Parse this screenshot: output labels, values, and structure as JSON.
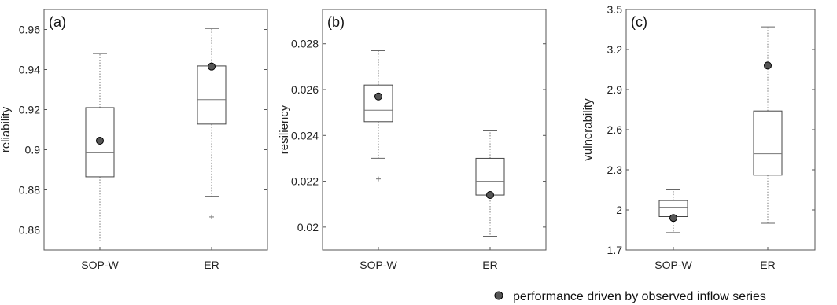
{
  "figure": {
    "legend": {
      "marker_color": "#555555",
      "label": "performance driven by observed inflow series",
      "placement": "bottom-right"
    }
  },
  "chart_data": [
    {
      "type": "box",
      "panel_label": "(a)",
      "ylabel": "reliability",
      "categories": [
        "SOP-W",
        "ER"
      ],
      "ylim": [
        0.85,
        0.97
      ],
      "yticks": [
        0.86,
        0.88,
        0.9,
        0.92,
        0.94,
        0.96
      ],
      "ytick_labels": [
        "0.86",
        "0.88",
        "0.9",
        "0.92",
        "0.94",
        "0.96"
      ],
      "boxes": [
        {
          "category": "SOP-W",
          "whisker_low": 0.8545,
          "q1": 0.8865,
          "median": 0.8985,
          "q3": 0.921,
          "whisker_high": 0.948,
          "outliers": [],
          "observed": 0.9045
        },
        {
          "category": "ER",
          "whisker_low": 0.8768,
          "q1": 0.9128,
          "median": 0.925,
          "q3": 0.9418,
          "whisker_high": 0.9605,
          "outliers": [
            0.8665
          ],
          "observed": 0.9415
        }
      ]
    },
    {
      "type": "box",
      "panel_label": "(b)",
      "ylabel": "resiliency",
      "categories": [
        "SOP-W",
        "ER"
      ],
      "ylim": [
        0.019,
        0.0295
      ],
      "yticks": [
        0.02,
        0.022,
        0.024,
        0.026,
        0.028
      ],
      "ytick_labels": [
        "0.02",
        "0.022",
        "0.024",
        "0.026",
        "0.028"
      ],
      "boxes": [
        {
          "category": "SOP-W",
          "whisker_low": 0.023,
          "q1": 0.0246,
          "median": 0.0251,
          "q3": 0.0262,
          "whisker_high": 0.0277,
          "outliers": [
            0.0221
          ],
          "observed": 0.0257
        },
        {
          "category": "ER",
          "whisker_low": 0.0196,
          "q1": 0.0214,
          "median": 0.022,
          "q3": 0.023,
          "whisker_high": 0.0242,
          "outliers": [],
          "observed": 0.0214
        }
      ]
    },
    {
      "type": "box",
      "panel_label": "(c)",
      "ylabel": "vulnerability",
      "categories": [
        "SOP-W",
        "ER"
      ],
      "ylim": [
        1.7,
        3.5
      ],
      "yticks": [
        1.7,
        2.0,
        2.3,
        2.6,
        2.9,
        3.2,
        3.5
      ],
      "ytick_labels": [
        "1.7",
        "2",
        "2.3",
        "2.6",
        "2.9",
        "3.2",
        "3.5"
      ],
      "boxes": [
        {
          "category": "SOP-W",
          "whisker_low": 1.83,
          "q1": 1.95,
          "median": 2.02,
          "q3": 2.07,
          "whisker_high": 2.15,
          "outliers": [],
          "observed": 1.94
        },
        {
          "category": "ER",
          "whisker_low": 1.9,
          "q1": 2.26,
          "median": 2.42,
          "q3": 2.74,
          "whisker_high": 3.37,
          "outliers": [],
          "observed": 3.08
        }
      ]
    }
  ]
}
